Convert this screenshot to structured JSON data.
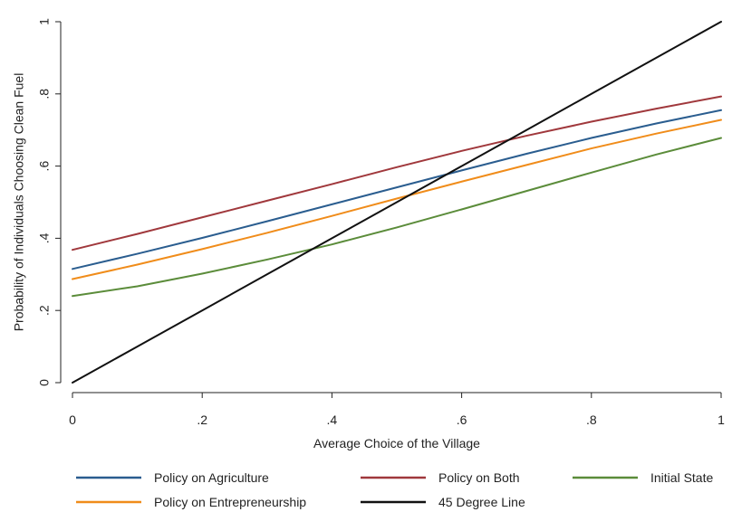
{
  "chart_data": {
    "type": "line",
    "title": "",
    "xlabel": "Average Choice of the Village",
    "ylabel": "Probability of Individuals Choosing Clean Fuel",
    "xlim": [
      0,
      1
    ],
    "ylim": [
      0,
      1
    ],
    "x_ticks": [
      0,
      0.2,
      0.4,
      0.6,
      0.8,
      1
    ],
    "x_tick_labels": [
      "0",
      ".2",
      ".4",
      ".6",
      ".8",
      "1"
    ],
    "y_ticks": [
      0,
      0.2,
      0.4,
      0.6,
      0.8,
      1
    ],
    "y_tick_labels": [
      "0",
      ".2",
      ".4",
      ".6",
      ".8",
      "1"
    ],
    "grid": false,
    "legend_placement": "bottom",
    "x": [
      0,
      0.1,
      0.2,
      0.3,
      0.4,
      0.5,
      0.6,
      0.7,
      0.8,
      0.9,
      1
    ],
    "series": [
      {
        "name": "Policy on Agriculture",
        "color": "#2a5d8f",
        "values": [
          0.315,
          0.357,
          0.401,
          0.447,
          0.494,
          0.541,
          0.588,
          0.634,
          0.678,
          0.718,
          0.755
        ]
      },
      {
        "name": "Policy on Both",
        "color": "#a0383c",
        "values": [
          0.368,
          0.412,
          0.458,
          0.504,
          0.55,
          0.597,
          0.642,
          0.684,
          0.723,
          0.759,
          0.793
        ]
      },
      {
        "name": "Initial State",
        "color": "#5b8c3a",
        "values": [
          0.24,
          0.267,
          0.302,
          0.341,
          0.383,
          0.43,
          0.48,
          0.531,
          0.582,
          0.632,
          0.678
        ]
      },
      {
        "name": "Policy on Entrepreneurship",
        "color": "#f08c1a",
        "values": [
          0.287,
          0.327,
          0.37,
          0.415,
          0.462,
          0.51,
          0.557,
          0.603,
          0.649,
          0.69,
          0.728
        ]
      },
      {
        "name": "45 Degree Line",
        "color": "#111111",
        "values": [
          0,
          0.1,
          0.2,
          0.3,
          0.4,
          0.5,
          0.6,
          0.7,
          0.8,
          0.9,
          1.0
        ]
      }
    ]
  }
}
